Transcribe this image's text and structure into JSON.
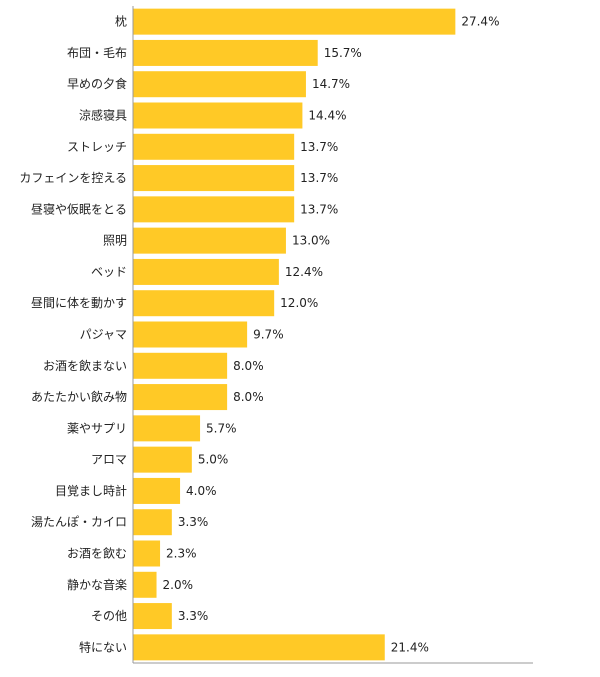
{
  "chart_data": {
    "type": "bar",
    "orientation": "horizontal",
    "categories": [
      "枕",
      "布団・毛布",
      "早めの夕食",
      "涼感寝具",
      "ストレッチ",
      "カフェインを控える",
      "昼寝や仮眠をとる",
      "照明",
      "ベッド",
      "昼間に体を動かす",
      "パジャマ",
      "お酒を飲まない",
      "あたたかい飲み物",
      "薬やサプリ",
      "アロマ",
      "目覚まし時計",
      "湯たんぽ・カイロ",
      "お酒を飲む",
      "静かな音楽",
      "その他",
      "特にない"
    ],
    "values": [
      27.4,
      15.7,
      14.7,
      14.4,
      13.7,
      13.7,
      13.7,
      13.0,
      12.4,
      12.0,
      9.7,
      8.0,
      8.0,
      5.7,
      5.0,
      4.0,
      3.3,
      2.3,
      2.0,
      3.3,
      21.4
    ],
    "value_labels": [
      "27.4%",
      "15.7%",
      "14.7%",
      "14.4%",
      "13.7%",
      "13.7%",
      "13.7%",
      "13.0%",
      "12.4%",
      "12.0%",
      "9.7%",
      "8.0%",
      "8.0%",
      "5.7%",
      "5.0%",
      "4.0%",
      "3.3%",
      "2.3%",
      "2.0%",
      "3.3%",
      "21.4%"
    ],
    "xlim": [
      0,
      34
    ],
    "bar_color": "#FFC926",
    "axis_color": "#999999",
    "grid": false,
    "legend": "none"
  }
}
